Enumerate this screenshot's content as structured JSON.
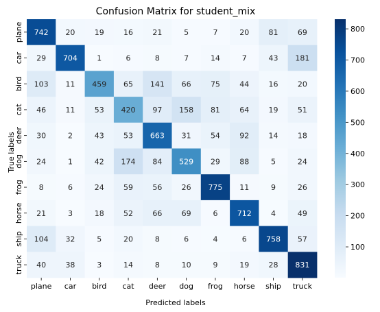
{
  "chart_data": {
    "type": "heatmap",
    "title": "Confusion Matrix for student_mix",
    "xlabel": "Predicted labels",
    "ylabel": "True labels",
    "x_categories": [
      "plane",
      "car",
      "bird",
      "cat",
      "deer",
      "dog",
      "frog",
      "horse",
      "ship",
      "truck"
    ],
    "y_categories": [
      "plane",
      "car",
      "bird",
      "cat",
      "deer",
      "dog",
      "frog",
      "horse",
      "ship",
      "truck"
    ],
    "matrix": [
      [
        742,
        20,
        19,
        16,
        21,
        5,
        7,
        20,
        81,
        69
      ],
      [
        29,
        704,
        1,
        6,
        8,
        7,
        14,
        7,
        43,
        181
      ],
      [
        103,
        11,
        459,
        65,
        141,
        66,
        75,
        44,
        16,
        20
      ],
      [
        46,
        11,
        53,
        420,
        97,
        158,
        81,
        64,
        19,
        51
      ],
      [
        30,
        2,
        43,
        53,
        663,
        31,
        54,
        92,
        14,
        18
      ],
      [
        24,
        1,
        42,
        174,
        84,
        529,
        29,
        88,
        5,
        24
      ],
      [
        8,
        6,
        24,
        59,
        56,
        26,
        775,
        11,
        9,
        26
      ],
      [
        21,
        3,
        18,
        52,
        66,
        69,
        6,
        712,
        4,
        49
      ],
      [
        104,
        32,
        5,
        20,
        8,
        6,
        4,
        6,
        758,
        57
      ],
      [
        40,
        38,
        3,
        14,
        8,
        10,
        9,
        19,
        28,
        831
      ]
    ],
    "colormap": "Blues",
    "colormap_stops": [
      "#f7fbff",
      "#deebf7",
      "#c6dbef",
      "#9ecae1",
      "#6baed6",
      "#4292c6",
      "#2171b5",
      "#08519c",
      "#08306b"
    ],
    "vmin": 1,
    "vmax": 831,
    "colorbar_ticks": [
      100,
      200,
      300,
      400,
      500,
      600,
      700,
      800
    ],
    "annotations": true,
    "grid": false
  }
}
